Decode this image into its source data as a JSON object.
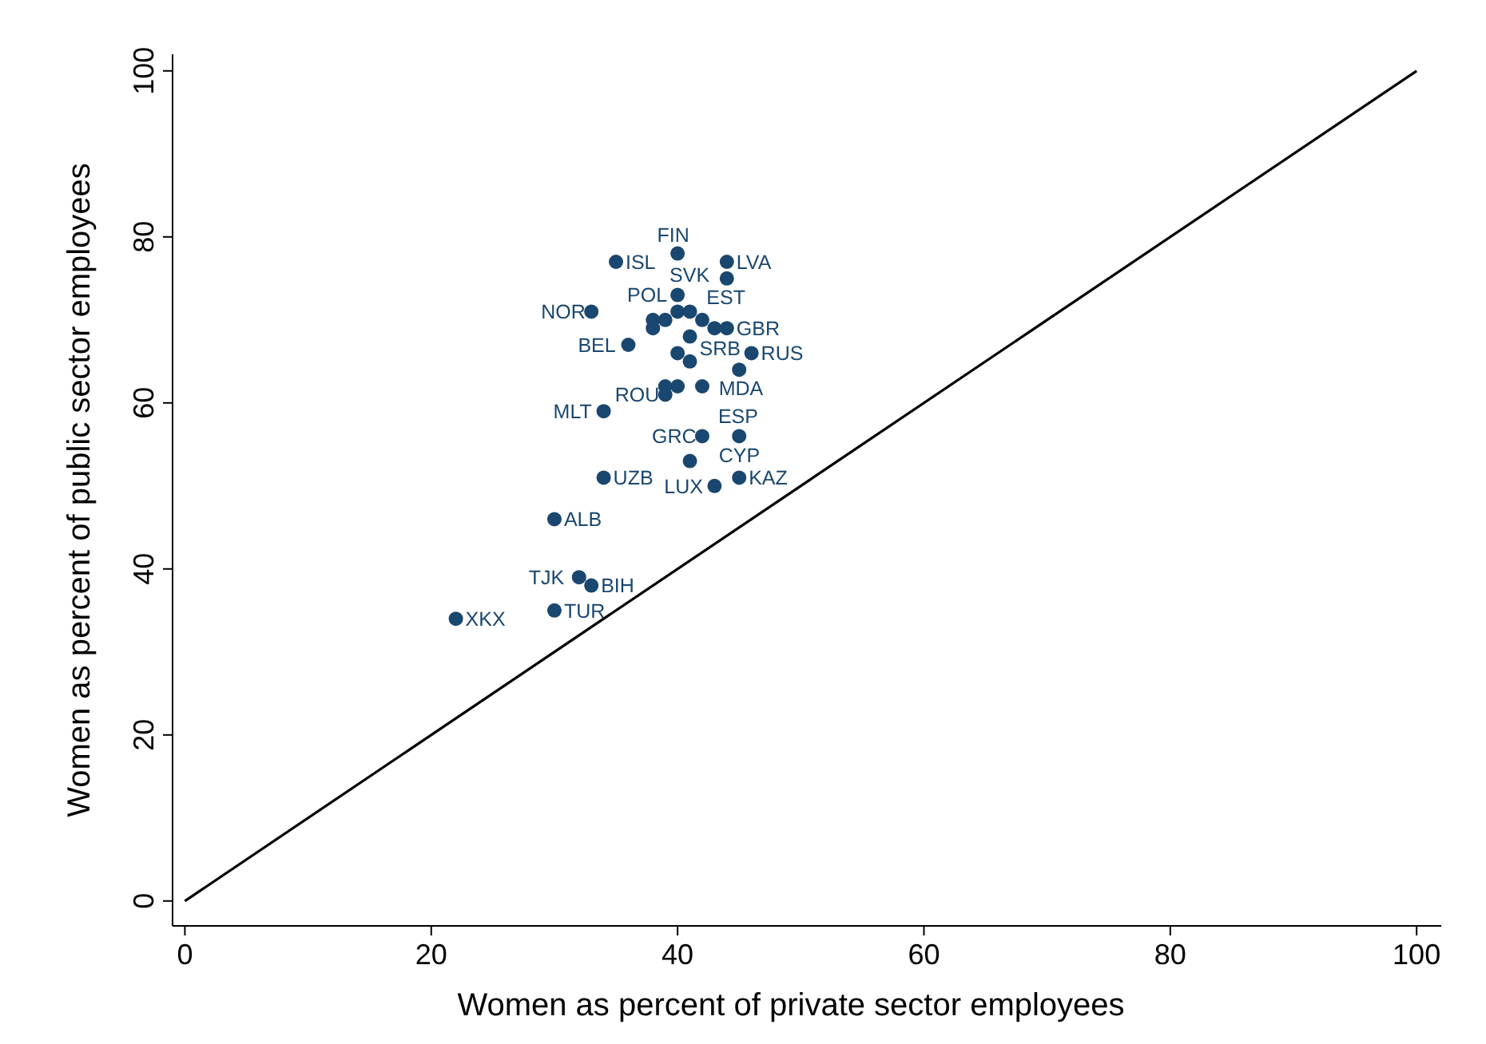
{
  "chart_data": {
    "type": "scatter",
    "xlabel": "Women as percent of private sector employees",
    "ylabel": "Women as percent of public sector employees",
    "xlim": [
      -1,
      102
    ],
    "ylim": [
      -3,
      102
    ],
    "xticks": [
      0,
      20,
      40,
      60,
      80,
      100
    ],
    "yticks": [
      0,
      20,
      40,
      60,
      80,
      100
    ],
    "grid": false,
    "series": [
      {
        "type": "scatter",
        "marker": "circle",
        "color": "#1a476f",
        "x": [
          35,
          40,
          44,
          44,
          40,
          33,
          38,
          38,
          39,
          40,
          41,
          42,
          43,
          44,
          36,
          41,
          40,
          41,
          46,
          45,
          39,
          40,
          42,
          39,
          34,
          42,
          45,
          41,
          45,
          43,
          34,
          30,
          32,
          33,
          30,
          22
        ],
        "values": [
          77,
          78,
          77,
          75,
          73,
          71,
          70,
          69,
          70,
          71,
          71,
          70,
          69,
          69,
          67,
          68,
          66,
          65,
          66,
          64,
          62,
          62,
          62,
          61,
          59,
          56,
          56,
          53,
          51,
          50,
          51,
          46,
          39,
          38,
          35,
          34
        ]
      },
      {
        "type": "line",
        "color": "#000000",
        "x": [
          0,
          100
        ],
        "values": [
          0,
          100
        ]
      }
    ],
    "annotations": [
      {
        "text": "ISL",
        "x": 35,
        "y": 77
      },
      {
        "text": "FIN",
        "x": 40,
        "y": 78
      },
      {
        "text": "LVA",
        "x": 44,
        "y": 77
      },
      {
        "text": "EST",
        "x": 44,
        "y": 75
      },
      {
        "text": "POL",
        "x": 40,
        "y": 73
      },
      {
        "text": "NOR",
        "x": 33,
        "y": 71
      },
      {
        "text": "SVK",
        "x": 41,
        "y": 71
      },
      {
        "text": "GBR",
        "x": 44,
        "y": 69
      },
      {
        "text": "BEL",
        "x": 36,
        "y": 67
      },
      {
        "text": "SRB",
        "x": 41,
        "y": 65
      },
      {
        "text": "RUS",
        "x": 46,
        "y": 66
      },
      {
        "text": "MDA",
        "x": 45,
        "y": 64
      },
      {
        "text": "ESP",
        "x": 42,
        "y": 62
      },
      {
        "text": "ROU",
        "x": 39,
        "y": 61
      },
      {
        "text": "MLT",
        "x": 34,
        "y": 59
      },
      {
        "text": "GRC",
        "x": 42,
        "y": 56
      },
      {
        "text": "CYP",
        "x": 45,
        "y": 56
      },
      {
        "text": "KAZ",
        "x": 45,
        "y": 51
      },
      {
        "text": "LUX",
        "x": 43,
        "y": 50
      },
      {
        "text": "UZB",
        "x": 34,
        "y": 51
      },
      {
        "text": "ALB",
        "x": 30,
        "y": 46
      },
      {
        "text": "TJK",
        "x": 32,
        "y": 39
      },
      {
        "text": "BIH",
        "x": 33,
        "y": 38
      },
      {
        "text": "TUR",
        "x": 30,
        "y": 35
      },
      {
        "text": "XKX",
        "x": 22,
        "y": 34
      }
    ]
  }
}
